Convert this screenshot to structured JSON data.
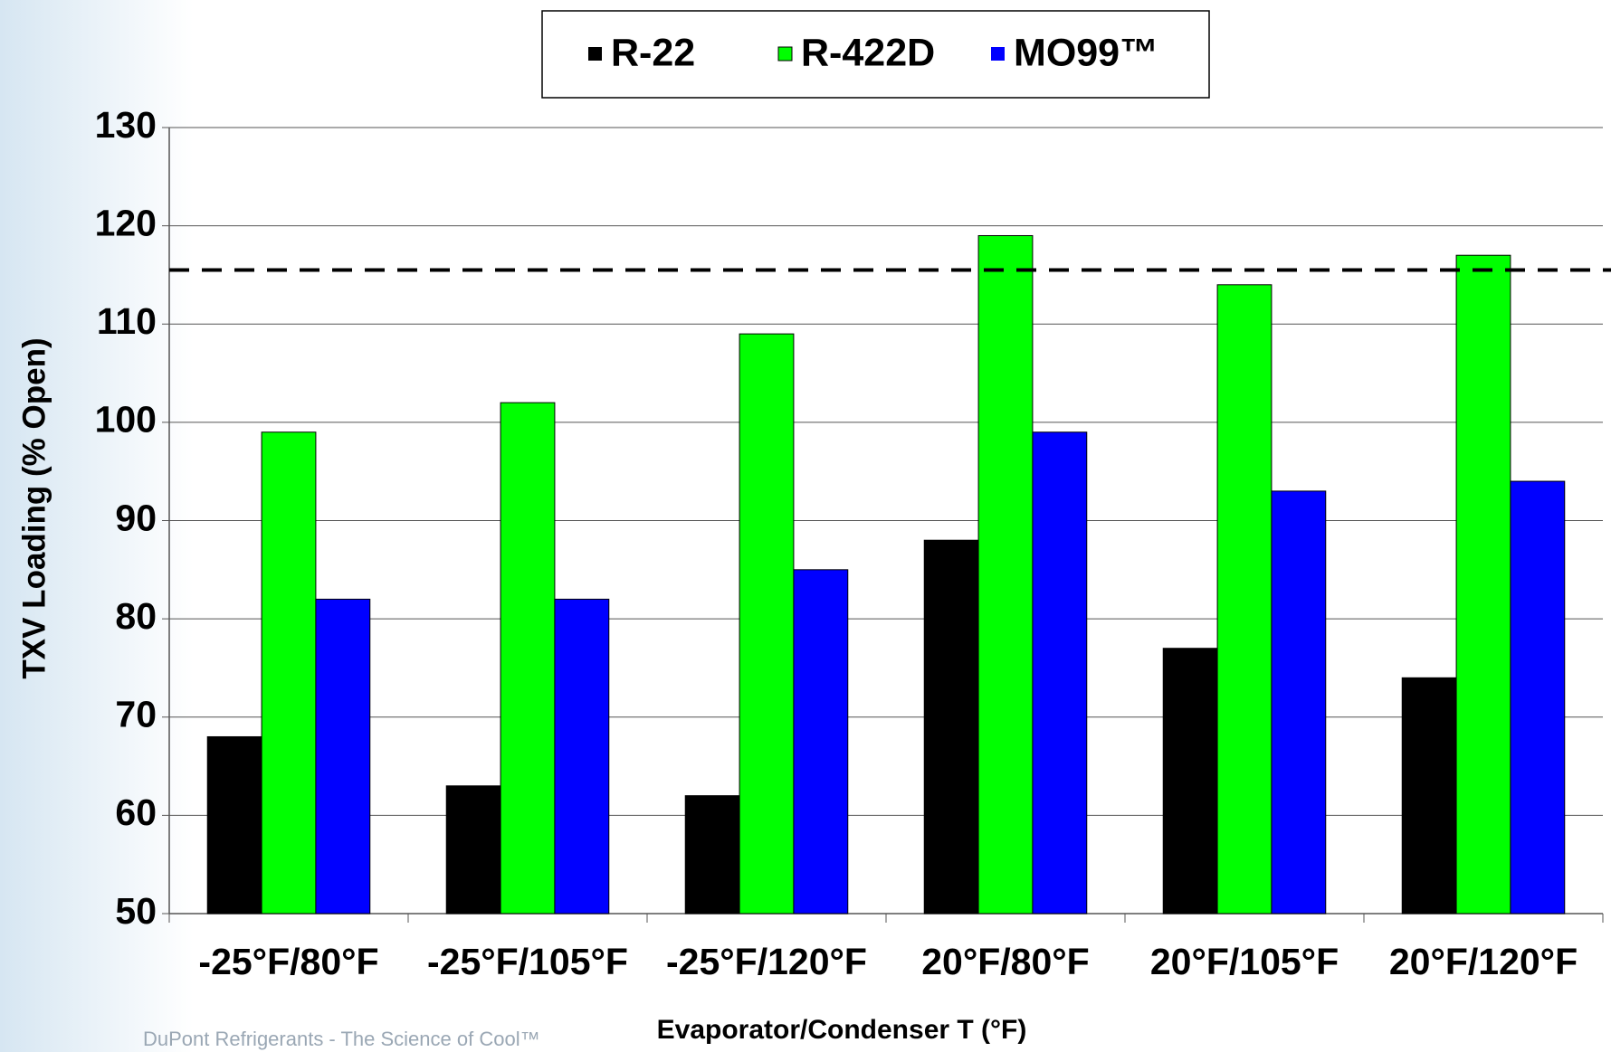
{
  "chart_data": {
    "type": "bar",
    "x_label": "Evaporator/Condenser T (°F)",
    "y_label": "TXV Loading (% Open)",
    "categories": [
      "-25°F/80°F",
      "-25°F/105°F",
      "-25°F/120°F",
      "20°F/80°F",
      "20°F/105°F",
      "20°F/120°F"
    ],
    "series": [
      {
        "name": "R-22",
        "color": "#000000",
        "values": [
          68,
          63,
          62,
          88,
          77,
          74
        ]
      },
      {
        "name": "R-422D",
        "color": "#00ff00",
        "values": [
          99,
          102,
          109,
          119,
          114,
          117
        ]
      },
      {
        "name": "MO99™",
        "color": "#0000ff",
        "values": [
          82,
          82,
          85,
          99,
          93,
          94
        ]
      }
    ],
    "reference_line": 115.5,
    "ylim": [
      50,
      130
    ],
    "yticks": [
      50,
      60,
      70,
      80,
      90,
      100,
      110,
      120,
      130
    ],
    "grid": true,
    "legend": "top",
    "footer": "DuPont Refrigerants - The Science of Cool™"
  }
}
